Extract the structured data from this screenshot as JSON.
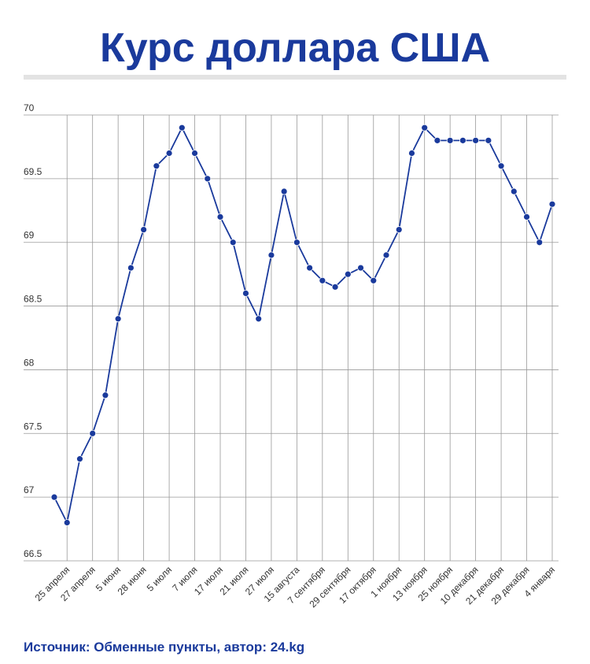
{
  "chart_data": {
    "type": "line",
    "title": "Курс доллара США",
    "source": "Источник: Обменные пункты, автор: 24.kg",
    "categories": [
      null,
      "25 апреля",
      null,
      "27 апреля",
      null,
      "5 июня",
      null,
      "28 июня",
      null,
      "5 июля",
      null,
      "7 июля",
      null,
      "17 июля",
      null,
      "21 июля",
      null,
      "27 июля",
      null,
      "15 августа",
      null,
      "7 сентября",
      null,
      "29 сентября",
      null,
      "17 октября",
      null,
      "1 ноября",
      null,
      "13 ноября",
      null,
      "25 ноября",
      null,
      "10 декабря",
      null,
      "21 декабря",
      null,
      "29 декабря",
      null,
      "4 января"
    ],
    "values": [
      67.0,
      66.8,
      67.3,
      67.5,
      67.8,
      68.4,
      68.8,
      69.1,
      69.6,
      69.7,
      69.9,
      69.7,
      69.5,
      69.2,
      69.0,
      68.6,
      68.4,
      68.9,
      69.4,
      69.0,
      68.8,
      68.7,
      68.65,
      68.75,
      68.8,
      68.7,
      68.9,
      69.1,
      69.7,
      69.9,
      69.8,
      69.8,
      69.8,
      69.8,
      69.8,
      69.6,
      69.4,
      69.2,
      69.0,
      69.3
    ],
    "color": "#1a3a9c",
    "ylim": [
      66.5,
      70
    ],
    "yticks": [
      66.5,
      67,
      67.5,
      68,
      68.5,
      69,
      69.5,
      70
    ],
    "grid": true
  }
}
